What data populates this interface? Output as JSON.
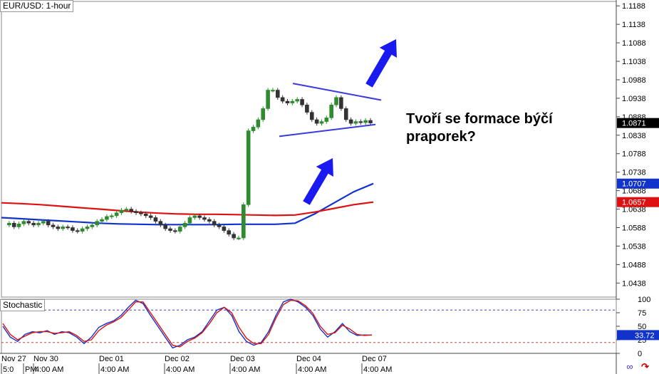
{
  "chart_data": [
    {
      "type": "candlestick",
      "title": "EUR/USD: 1-hour",
      "ylim": [
        1.04,
        1.12
      ],
      "yticks": [
        "1.1188",
        "1.1138",
        "1.1088",
        "1.1038",
        "1.0988",
        "1.0938",
        "1.0888",
        "1.0838",
        "1.0788",
        "1.0738",
        "1.0688",
        "1.0638",
        "1.0588",
        "1.0538",
        "1.0488",
        "1.0438"
      ],
      "ytick_values": [
        1.1188,
        1.1138,
        1.1088,
        1.1038,
        1.0988,
        1.0938,
        1.0888,
        1.0838,
        1.0788,
        1.0738,
        1.0688,
        1.0638,
        1.0588,
        1.0538,
        1.0488,
        1.0438
      ],
      "date_labels": [
        "Nov 27",
        "Nov 30",
        "Dec 01",
        "Dec 02",
        "Dec 03",
        "Dec 04",
        "Dec 07"
      ],
      "time_labels": [
        "5:0",
        "PM",
        "4:00 AM",
        "4:00 AM",
        "4:00 AM",
        "4:00 AM",
        "4:00 AM",
        "4:00 AM"
      ],
      "price_tags": [
        {
          "label": "1.0871",
          "value": 1.0871,
          "color": "#000000"
        },
        {
          "label": "1.0707",
          "value": 1.0707,
          "color": "#1133cc"
        },
        {
          "label": "1.0657",
          "value": 1.0657,
          "color": "#dd1111"
        }
      ],
      "price_path": [
        1.0595,
        1.06,
        1.059,
        1.0598,
        1.0605,
        1.06,
        1.0595,
        1.06,
        1.0605,
        1.0595,
        1.059,
        1.0585,
        1.059,
        1.0588,
        1.058,
        1.0578,
        1.0585,
        1.059,
        1.0595,
        1.0605,
        1.061,
        1.0618,
        1.062,
        1.0628,
        1.0635,
        1.0638,
        1.0632,
        1.0628,
        1.0625,
        1.062,
        1.0615,
        1.0605,
        1.0595,
        1.0585,
        1.058,
        1.0578,
        1.059,
        1.06,
        1.0615,
        1.062,
        1.0615,
        1.061,
        1.0605,
        1.0595,
        1.059,
        1.058,
        1.057,
        1.056,
        1.056,
        1.065,
        1.085,
        1.086,
        1.088,
        1.091,
        1.096,
        1.096,
        1.094,
        1.093,
        1.0925,
        1.093,
        1.0935,
        1.092,
        1.09,
        1.088,
        1.087,
        1.0875,
        1.0885,
        1.092,
        1.094,
        1.091,
        1.088,
        1.087,
        1.0875,
        1.0872,
        1.0878,
        1.0871
      ],
      "series": [
        {
          "name": "",
          "color": "#1133cc",
          "values": [
            1.0615,
            1.0612,
            1.0609,
            1.0606,
            1.0603,
            1.06,
            1.0598,
            1.0597,
            1.0596,
            1.0596,
            1.0596,
            1.0596,
            1.0597,
            1.0597,
            1.0597,
            1.06,
            1.0625,
            1.0655,
            1.0685,
            1.0707
          ]
        },
        {
          "name": "",
          "color": "#dd1111",
          "values": [
            1.0655,
            1.0653,
            1.065,
            1.0646,
            1.0642,
            1.0638,
            1.0634,
            1.063,
            1.0627,
            1.0625,
            1.0624,
            1.0624,
            1.0623,
            1.0622,
            1.0621,
            1.0622,
            1.063,
            1.064,
            1.065,
            1.0657
          ]
        }
      ],
      "annotations": {
        "pennant_upper": [
          [
            1.0978,
            1.0933
          ]
        ],
        "pennant_lower": [
          [
            1.0835,
            1.0867
          ]
        ],
        "note": "Tvoří se formace býčí praporek?"
      }
    },
    {
      "type": "line",
      "title": "Stochastic",
      "ylim": [
        0,
        100
      ],
      "yticks": [
        "100",
        "75",
        "50",
        "25",
        "0"
      ],
      "ytick_values": [
        100,
        75,
        50,
        25,
        0
      ],
      "levels": [
        80,
        20
      ],
      "value_tag": {
        "label": "33.72",
        "value": 33.72,
        "color": "#1133cc"
      },
      "series": [
        {
          "name": "",
          "color": "#1133cc",
          "values": [
            50,
            30,
            22,
            35,
            40,
            38,
            42,
            35,
            40,
            38,
            30,
            18,
            30,
            48,
            55,
            60,
            70,
            85,
            98,
            92,
            70,
            50,
            30,
            10,
            15,
            25,
            30,
            40,
            60,
            80,
            85,
            70,
            40,
            22,
            15,
            20,
            40,
            70,
            95,
            100,
            95,
            85,
            70,
            45,
            30,
            40,
            55,
            40,
            33,
            34,
            33.7
          ]
        },
        {
          "name": "",
          "color": "#dd1111",
          "values": [
            55,
            35,
            25,
            32,
            38,
            40,
            40,
            37,
            38,
            40,
            33,
            22,
            25,
            42,
            52,
            58,
            66,
            80,
            95,
            95,
            75,
            55,
            35,
            15,
            12,
            22,
            28,
            38,
            55,
            75,
            85,
            75,
            48,
            28,
            18,
            18,
            35,
            65,
            90,
            98,
            97,
            88,
            74,
            50,
            35,
            38,
            52,
            45,
            35,
            33,
            34
          ]
        }
      ]
    }
  ],
  "labels": {
    "main_title": "EUR/USD: 1-hour",
    "stoch_title": "Stochastic",
    "note": "Tvoří se formace býčí praporek?"
  }
}
